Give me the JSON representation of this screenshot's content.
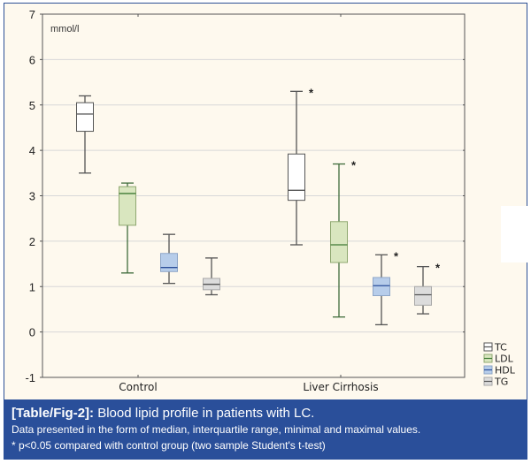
{
  "chart_data": {
    "type": "box",
    "title": "",
    "unit_label": "mmol/l",
    "xlabel": "",
    "ylabel": "mmol/l",
    "ylim": [
      -1,
      7
    ],
    "yticks": [
      -1,
      0,
      1,
      2,
      3,
      4,
      5,
      6,
      7
    ],
    "grid": true,
    "legend_position": "bottom-right",
    "categories": [
      "Control",
      "Liver Cirrhosis"
    ],
    "series": [
      {
        "name": "TC",
        "fill": "#ffffff",
        "stroke": "#555555",
        "median_color": "#555555",
        "values": [
          {
            "min": 3.5,
            "q1": 4.42,
            "median": 4.8,
            "q3": 5.05,
            "max": 5.2,
            "significant": false
          },
          {
            "min": 1.92,
            "q1": 2.9,
            "median": 3.12,
            "q3": 3.92,
            "max": 5.3,
            "significant": true
          }
        ]
      },
      {
        "name": "LDL",
        "fill": "#d9e6bf",
        "stroke": "#3f6b3a",
        "median_color": "#3f7a35",
        "values": [
          {
            "min": 1.3,
            "q1": 2.35,
            "median": 3.05,
            "q3": 3.2,
            "max": 3.28,
            "significant": false
          },
          {
            "min": 0.33,
            "q1": 1.53,
            "median": 1.92,
            "q3": 2.43,
            "max": 3.7,
            "significant": true
          }
        ]
      },
      {
        "name": "HDL",
        "fill": "#b7cdea",
        "stroke": "#555555",
        "median_color": "#2b4f9a",
        "values": [
          {
            "min": 1.07,
            "q1": 1.33,
            "median": 1.42,
            "q3": 1.73,
            "max": 2.15,
            "significant": false
          },
          {
            "min": 0.16,
            "q1": 0.8,
            "median": 1.02,
            "q3": 1.2,
            "max": 1.7,
            "significant": true
          }
        ]
      },
      {
        "name": "TG",
        "fill": "#dcdcdc",
        "stroke": "#555555",
        "median_color": "#555555",
        "values": [
          {
            "min": 0.82,
            "q1": 0.93,
            "median": 1.05,
            "q3": 1.18,
            "max": 1.63,
            "significant": false
          },
          {
            "min": 0.4,
            "q1": 0.59,
            "median": 0.82,
            "q3": 1.0,
            "max": 1.44,
            "significant": true
          }
        ]
      }
    ],
    "significance_marker": "*"
  },
  "caption": {
    "label": "[Table/Fig-2]:",
    "title": " Blood lipid profile in patients with LC.",
    "line2": "Data presented in the form of median, interquartile range, minimal and maximal values.",
    "line3": "* p<0.05 compared with control group (two sample Student's t-test)"
  },
  "colors": {
    "frame_border": "#2c5096",
    "figure_background": "#fef9ee",
    "caption_background": "#2a4f9a",
    "gridline": "#d8d8d8"
  }
}
